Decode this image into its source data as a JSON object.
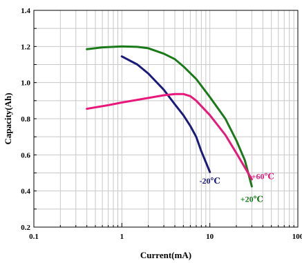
{
  "chart_data": {
    "type": "line",
    "title": "",
    "xlabel": "Current(mA)",
    "ylabel": "Capacity(Ah)",
    "x_scale": "log",
    "xlim": [
      0.1,
      100
    ],
    "ylim": [
      0.2,
      1.4
    ],
    "x_ticks": [
      0.1,
      1,
      10,
      100
    ],
    "x_tick_labels": [
      "0.1",
      "1",
      "10",
      "100"
    ],
    "y_ticks": [
      0.2,
      0.4,
      0.6,
      0.8,
      1.0,
      1.2,
      1.4
    ],
    "y_tick_labels": [
      "0.2",
      "0.4",
      "0.6",
      "0.8",
      "1.0",
      "1.2",
      "1.4"
    ],
    "grid": true,
    "legend": "none",
    "series": [
      {
        "name": "-20℃",
        "color": "#1a1a7a",
        "points": [
          [
            1,
            1.145
          ],
          [
            1.5,
            1.1
          ],
          [
            2,
            1.05
          ],
          [
            3,
            0.96
          ],
          [
            4,
            0.88
          ],
          [
            5,
            0.82
          ],
          [
            6,
            0.76
          ],
          [
            7,
            0.7
          ],
          [
            8,
            0.62
          ],
          [
            9,
            0.56
          ],
          [
            10,
            0.505
          ]
        ]
      },
      {
        "name": "+20℃",
        "color": "#1a7a1a",
        "points": [
          [
            0.4,
            1.185
          ],
          [
            0.6,
            1.195
          ],
          [
            1,
            1.2
          ],
          [
            1.5,
            1.198
          ],
          [
            2,
            1.19
          ],
          [
            3,
            1.16
          ],
          [
            4,
            1.13
          ],
          [
            5,
            1.09
          ],
          [
            7,
            1.02
          ],
          [
            10,
            0.92
          ],
          [
            15,
            0.8
          ],
          [
            20,
            0.68
          ],
          [
            25,
            0.57
          ],
          [
            30,
            0.425
          ]
        ]
      },
      {
        "name": "+60℃",
        "color": "#e8187a",
        "points": [
          [
            0.4,
            0.855
          ],
          [
            0.7,
            0.875
          ],
          [
            1,
            0.89
          ],
          [
            2,
            0.915
          ],
          [
            3,
            0.93
          ],
          [
            4,
            0.937
          ],
          [
            5,
            0.937
          ],
          [
            6,
            0.925
          ],
          [
            7,
            0.9
          ],
          [
            10,
            0.82
          ],
          [
            15,
            0.71
          ],
          [
            20,
            0.61
          ],
          [
            25,
            0.53
          ],
          [
            30,
            0.465
          ]
        ]
      }
    ],
    "annotations": [
      {
        "text": "-20℃",
        "x": 10,
        "y": 0.44,
        "series": 0
      },
      {
        "text": "+20℃",
        "x": 30,
        "y": 0.34,
        "series": 1
      },
      {
        "text": "+60℃",
        "x": 40,
        "y": 0.465,
        "series": 2
      }
    ]
  }
}
